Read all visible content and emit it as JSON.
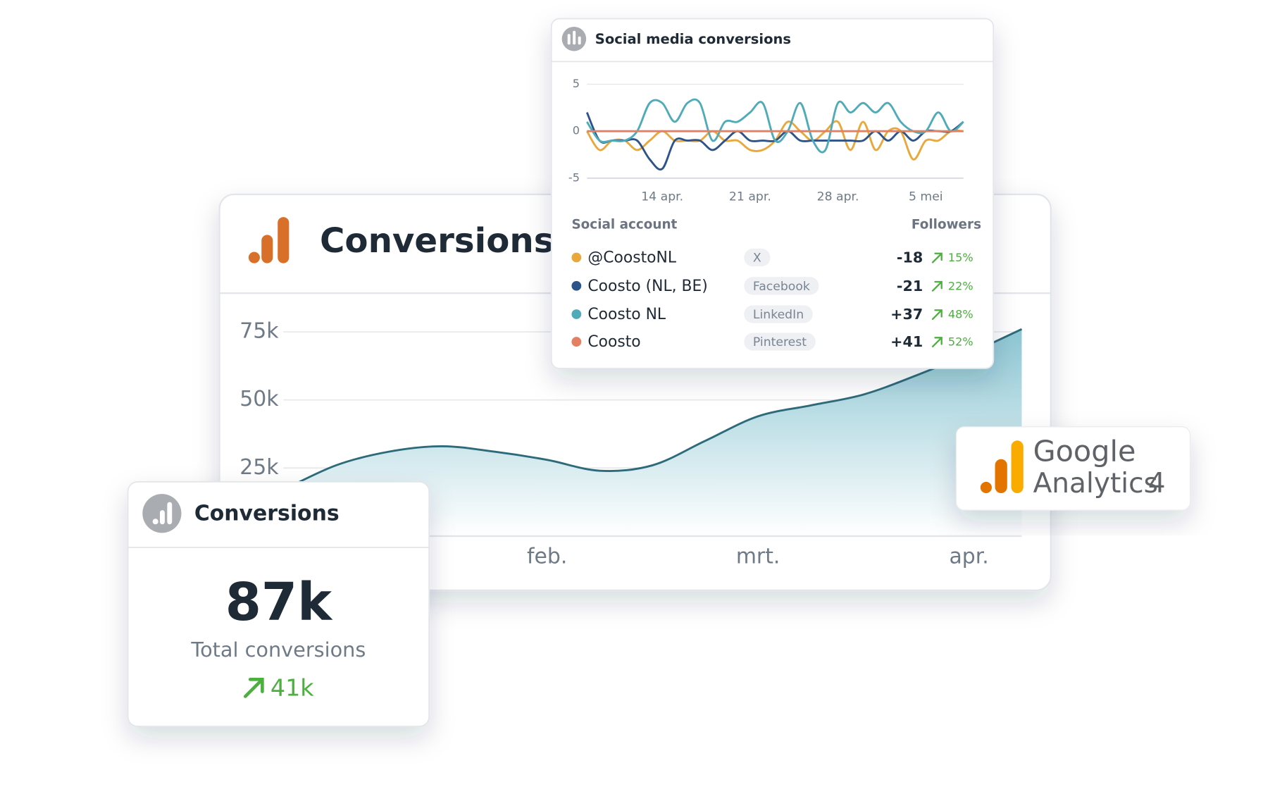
{
  "chart_data": [
    {
      "type": "area",
      "title": "Conversions",
      "categories": [
        null,
        null,
        null,
        null,
        null,
        "feb.",
        null,
        null,
        null,
        "mrt.",
        null,
        null,
        null,
        "apr.",
        null
      ],
      "series": [
        {
          "color": "#2e6b7a",
          "values": [
            17000,
            26000,
            31000,
            33000,
            31000,
            28000,
            24000,
            26000,
            35000,
            44000,
            48000,
            52000,
            59000,
            67000,
            76000
          ]
        }
      ],
      "ylim": [
        0,
        80000
      ],
      "yticks": [
        {
          "value": 25000,
          "label": "25k"
        },
        {
          "value": 50000,
          "label": "50k"
        },
        {
          "value": 75000,
          "label": "75k"
        }
      ],
      "grid": true
    },
    {
      "type": "line",
      "title": "Social media conversions",
      "categories": [
        null,
        null,
        null,
        null,
        null,
        null,
        "14 apr.",
        null,
        null,
        null,
        null,
        null,
        null,
        "21 apr.",
        null,
        null,
        null,
        null,
        null,
        null,
        "28 apr.",
        null,
        null,
        null,
        null,
        null,
        null,
        "5 mei",
        null,
        null,
        null
      ],
      "series": [
        {
          "color": "#e9a83b",
          "values": [
            0,
            -2,
            -1,
            -1,
            -2,
            -1,
            0,
            -1,
            -1,
            -1,
            0,
            -1,
            -1,
            -2,
            -2,
            -1,
            1,
            0,
            -1,
            0,
            1,
            -2,
            1,
            -2,
            0,
            0,
            -3,
            -1,
            -1,
            0,
            0
          ]
        },
        {
          "color": "#2d5489",
          "values": [
            2,
            -1,
            -1,
            -1,
            -1,
            -3,
            -4,
            -1,
            -1,
            -1,
            -2,
            -1,
            0,
            -1,
            -1,
            -1,
            0,
            -1,
            -1,
            -1,
            -1,
            -1,
            -1,
            0,
            -1,
            0,
            -1,
            0,
            0,
            0,
            1
          ]
        },
        {
          "color": "#4fabb8",
          "values": [
            1,
            -1,
            -1,
            -1,
            0,
            3,
            3,
            1,
            3,
            3,
            -1,
            1,
            1,
            2,
            3,
            -1,
            0,
            3,
            -1,
            -2,
            3,
            2,
            3,
            2,
            3,
            1,
            0,
            0,
            2,
            0,
            1
          ]
        },
        {
          "color": "#e57f62",
          "values": [
            0,
            0,
            0,
            0,
            0,
            0,
            0,
            0,
            0,
            0,
            0,
            0,
            0,
            0,
            0,
            0,
            0,
            0,
            0,
            0,
            0,
            0,
            0,
            0,
            0,
            0,
            0,
            0,
            0,
            0,
            0
          ]
        }
      ],
      "ylim": [
        -5,
        5
      ],
      "yticks": [
        -5,
        0,
        5
      ],
      "grid": true
    }
  ],
  "social_table": {
    "headers": [
      "Social account",
      "Followers"
    ],
    "rows": [
      {
        "account": "@CoostoNL",
        "platform": "X",
        "followers": "-18",
        "growth": "15%"
      },
      {
        "account": "Coosto (NL, BE)",
        "platform": "Facebook",
        "followers": "-21",
        "growth": "22%"
      },
      {
        "account": "Coosto NL",
        "platform": "LinkedIn",
        "followers": "+37",
        "growth": "48%"
      },
      {
        "account": "Coosto",
        "platform": "Pinterest",
        "followers": "+41",
        "growth": "52%"
      }
    ]
  },
  "summary_card": {
    "title": "Conversions",
    "value": "87k",
    "label": "Total conversions",
    "change": "41k"
  },
  "badge": {
    "brand": "Google",
    "product": "Analytics",
    "version": "4"
  }
}
